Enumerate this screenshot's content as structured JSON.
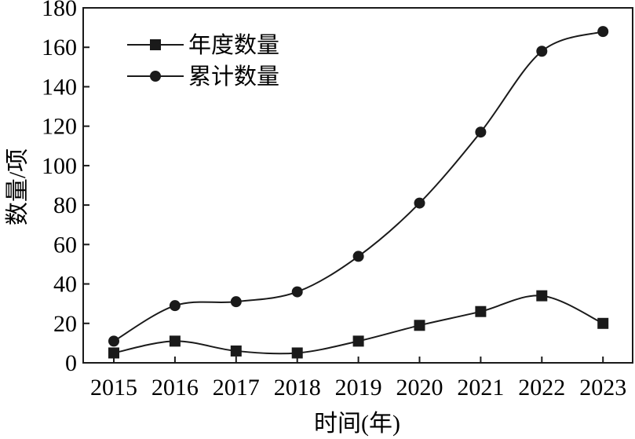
{
  "chart_data": {
    "type": "line",
    "x": [
      "2015",
      "2016",
      "2017",
      "2018",
      "2019",
      "2020",
      "2021",
      "2022",
      "2023"
    ],
    "series": [
      {
        "name": "年度数量",
        "marker": "square",
        "values": [
          5,
          11,
          6,
          5,
          11,
          19,
          26,
          34,
          20
        ]
      },
      {
        "name": "累计数量",
        "marker": "circle",
        "values": [
          11,
          29,
          31,
          36,
          54,
          81,
          117,
          158,
          168
        ]
      }
    ],
    "xlabel": "时间(年)",
    "ylabel": "数量/项",
    "ylim": [
      0,
      180
    ],
    "yticks": [
      "0",
      "20",
      "40",
      "60",
      "80",
      "100",
      "120",
      "140",
      "160",
      "180"
    ],
    "grid": false,
    "legend_position": "top-left",
    "line_color": "#1a1a1a"
  }
}
